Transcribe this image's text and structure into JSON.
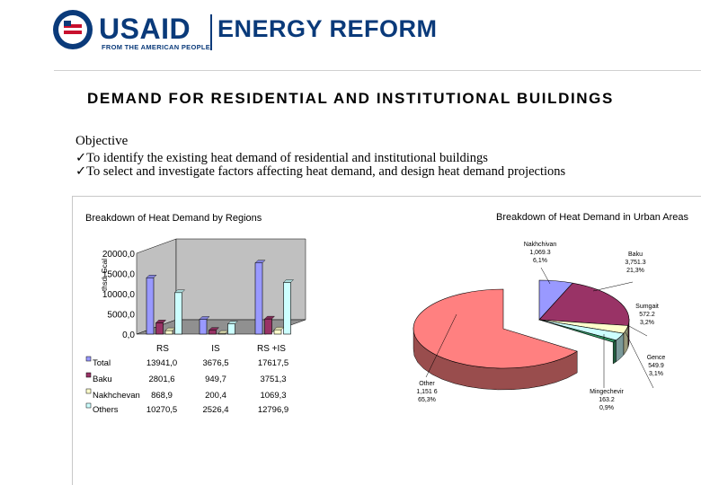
{
  "header": {
    "logo_text": "USAID",
    "logo_tagline": "FROM THE AMERICAN PEOPLE",
    "logo_title": "ENERGY REFORM"
  },
  "title": "DEMAND FOR RESIDENTIAL AND INSTITUTIONAL BUILDINGS",
  "objective": {
    "heading": "Objective",
    "bullets": [
      "To identify the existing heat demand of residential and institutional buildings",
      "To select and investigate factors affecting heat demand, and design heat demand projections"
    ]
  },
  "colors": {
    "total": "#9999ff",
    "baku": "#993366",
    "nakhchivan": "#ffffcc",
    "others": "#ccffff",
    "other_slice": "#ff8080",
    "sumgait": "#339966"
  },
  "chart_data": [
    {
      "type": "bar",
      "title": "Breakdown of Heat Demand by Regions",
      "ylabel": "thsd. Gcal",
      "ylim": [
        0,
        20000
      ],
      "yticks": [
        "0,0",
        "5000,0",
        "10000,0",
        "15000,0",
        "20000,0"
      ],
      "categories": [
        "RS",
        "IS",
        "RS +IS"
      ],
      "series": [
        {
          "name": "Total",
          "values": [
            13941.0,
            3676.5,
            17617.5
          ],
          "labels": [
            "13941,0",
            "3676,5",
            "17617,5"
          ]
        },
        {
          "name": "Baku",
          "values": [
            2801.6,
            949.7,
            3751.3
          ],
          "labels": [
            "2801,6",
            "949,7",
            "3751,3"
          ]
        },
        {
          "name": "Nakhchevan",
          "values": [
            868.9,
            200.4,
            1069.3
          ],
          "labels": [
            "868,9",
            "200,4",
            "1069,3"
          ]
        },
        {
          "name": "Others",
          "values": [
            10270.5,
            2526.4,
            12796.9
          ],
          "labels": [
            "10270,5",
            "2526,4",
            "12796,9"
          ]
        }
      ]
    },
    {
      "type": "pie",
      "title": "Breakdown of Heat Demand in Urban Areas",
      "slices": [
        {
          "name": "Nakhchivan",
          "value": 1069.3,
          "value_label": "1,069.3",
          "percent": 6.1,
          "percent_label": "6,1%"
        },
        {
          "name": "Baku",
          "value": 3751.3,
          "value_label": "3,751.3",
          "percent": 21.3,
          "percent_label": "21,3%"
        },
        {
          "name": "Sumgait",
          "value": 572.2,
          "value_label": "572.2",
          "percent": 3.2,
          "percent_label": "3,2%"
        },
        {
          "name": "Gence",
          "value": 549.9,
          "value_label": "549.9",
          "percent": 3.1,
          "percent_label": "3,1%"
        },
        {
          "name": "Mingechevir",
          "value": 163.2,
          "value_label": "163.2",
          "percent": 0.9,
          "percent_label": "0,9%"
        },
        {
          "name": "Other",
          "value": 11516,
          "value_label": "1,151 6",
          "percent": 65.3,
          "percent_label": "65,3%"
        }
      ]
    }
  ]
}
